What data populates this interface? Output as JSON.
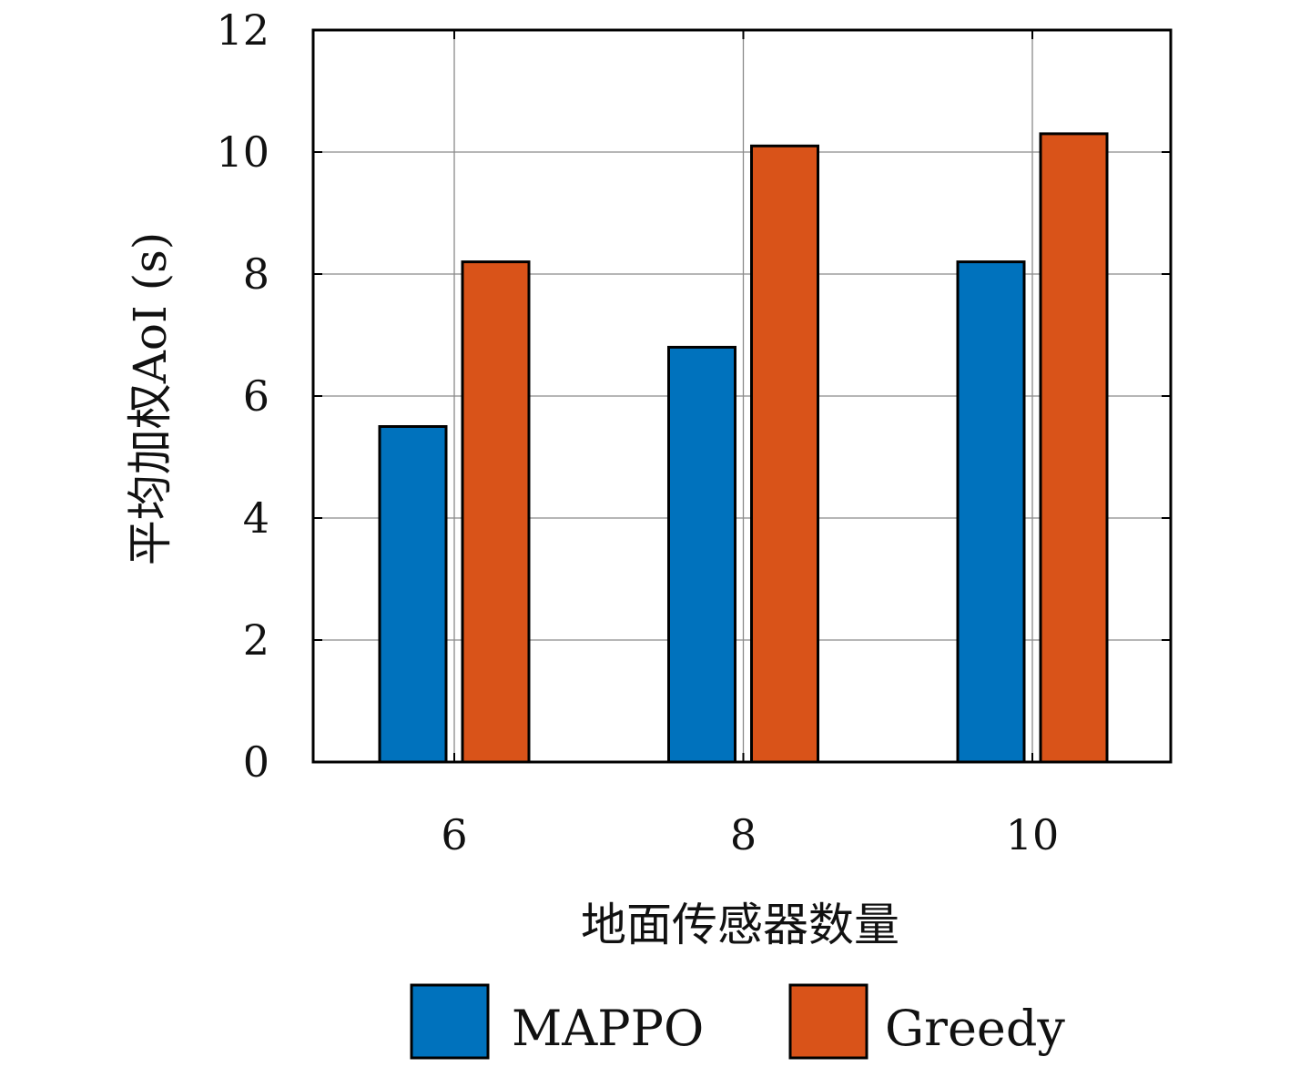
{
  "chart_data": {
    "type": "bar",
    "categories": [
      "6",
      "8",
      "10"
    ],
    "series": [
      {
        "name": "MAPPO",
        "values": [
          5.5,
          6.8,
          8.2
        ],
        "color": "#0072BD"
      },
      {
        "name": "Greedy",
        "values": [
          8.2,
          10.1,
          10.3
        ],
        "color": "#D95319"
      }
    ],
    "xlabel": "地面传感器数量",
    "ylabel": "平均加权AoI (s)",
    "ylim": [
      0,
      12
    ],
    "yticks": [
      "0",
      "2",
      "4",
      "6",
      "8",
      "10",
      "12"
    ],
    "grid": true,
    "legend_position": "bottom"
  }
}
